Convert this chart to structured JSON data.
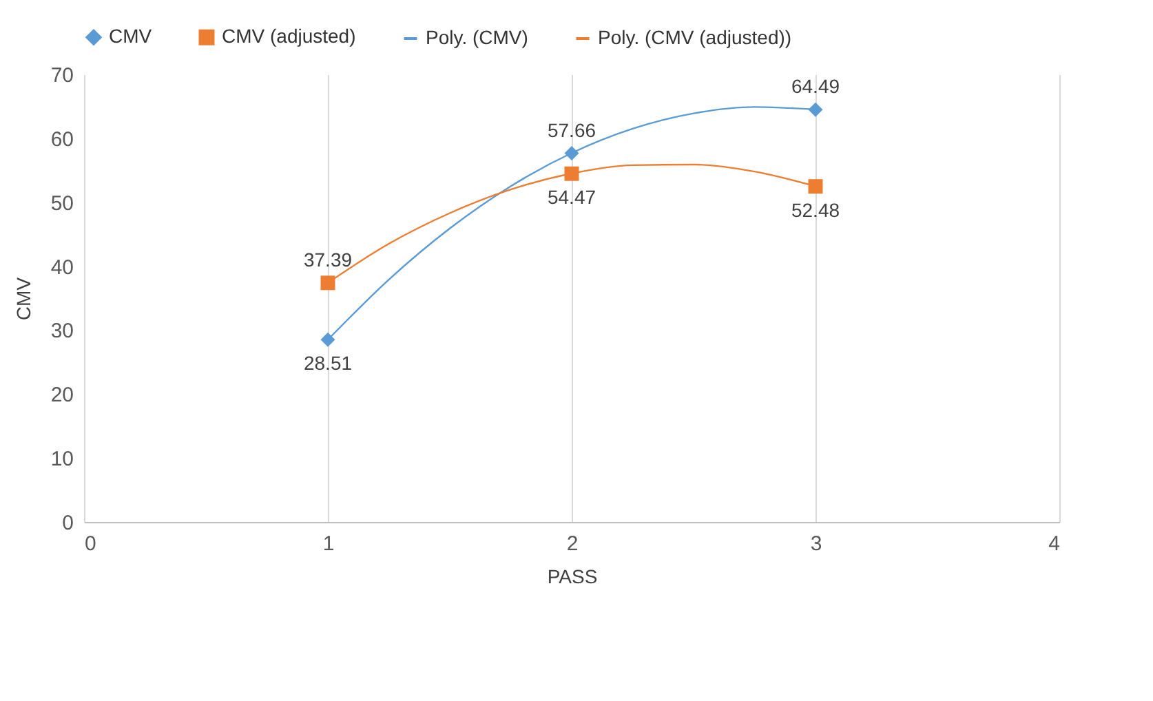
{
  "chart_data": {
    "type": "scatter",
    "xlabel": "PASS",
    "ylabel": "CMV",
    "xlim": [
      0,
      4
    ],
    "xticks": [
      0,
      1,
      2,
      3,
      4
    ],
    "ylim": [
      0,
      70
    ],
    "yticks": [
      0,
      10,
      20,
      30,
      40,
      50,
      60,
      70
    ],
    "grid": "x",
    "legend": "top",
    "series": [
      {
        "name": "CMV",
        "marker": "diamond",
        "color": "#5b9bd5",
        "x": [
          1,
          2,
          3
        ],
        "values": [
          28.51,
          57.66,
          64.49
        ],
        "value_labels": [
          "28.51",
          "57.66",
          "64.49"
        ]
      },
      {
        "name": "CMV (adjusted)",
        "marker": "square",
        "color": "#ed7d31",
        "x": [
          1,
          2,
          3
        ],
        "values": [
          37.39,
          54.47,
          52.48
        ],
        "value_labels": [
          "37.39",
          "54.47",
          "52.48"
        ]
      },
      {
        "name": "Poly. (CMV)",
        "type": "line",
        "color": "#5b9bd5",
        "x": [
          1,
          1.25,
          1.5,
          1.75,
          2,
          2.25,
          2.5,
          2.75,
          3
        ],
        "values": [
          28.5,
          37.9,
          45.9,
          52.5,
          57.7,
          61.5,
          63.9,
          64.9,
          64.5
        ]
      },
      {
        "name": "Poly. (CMV (adjusted))",
        "type": "line",
        "color": "#ed7d31",
        "x": [
          1,
          1.25,
          1.5,
          1.75,
          2,
          2.25,
          2.5,
          2.75,
          3
        ],
        "values": [
          37.4,
          43.5,
          48.3,
          52.0,
          54.5,
          55.8,
          55.9,
          54.8,
          52.5
        ]
      }
    ]
  }
}
